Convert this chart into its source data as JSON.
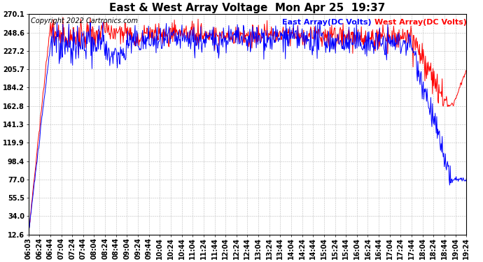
{
  "title": "East & West Array Voltage  Mon Apr 25  19:37",
  "copyright": "Copyright 2022 Cartronics.com",
  "legend_east": "East Array(DC Volts)",
  "legend_west": "West Array(DC Volts)",
  "east_color": "blue",
  "west_color": "red",
  "background_color": "#ffffff",
  "plot_bg_color": "#ffffff",
  "grid_color": "#aaaaaa",
  "yticks": [
    12.6,
    34.0,
    55.5,
    77.0,
    98.4,
    119.9,
    141.3,
    162.8,
    184.2,
    205.7,
    227.2,
    248.6,
    270.1
  ],
  "ymin": 12.6,
  "ymax": 270.1,
  "xtick_labels": [
    "06:03",
    "06:24",
    "06:44",
    "07:04",
    "07:24",
    "07:44",
    "08:04",
    "08:24",
    "08:44",
    "09:04",
    "09:24",
    "09:44",
    "10:04",
    "10:24",
    "10:44",
    "11:04",
    "11:24",
    "11:44",
    "12:04",
    "12:24",
    "12:44",
    "13:04",
    "13:24",
    "13:44",
    "14:04",
    "14:24",
    "14:44",
    "15:04",
    "15:24",
    "15:44",
    "16:04",
    "16:24",
    "16:44",
    "17:04",
    "17:24",
    "17:44",
    "18:04",
    "18:24",
    "18:44",
    "19:04",
    "19:24"
  ],
  "title_fontsize": 11,
  "axis_fontsize": 7,
  "legend_fontsize": 8,
  "copyright_fontsize": 7,
  "line_width": 0.7
}
